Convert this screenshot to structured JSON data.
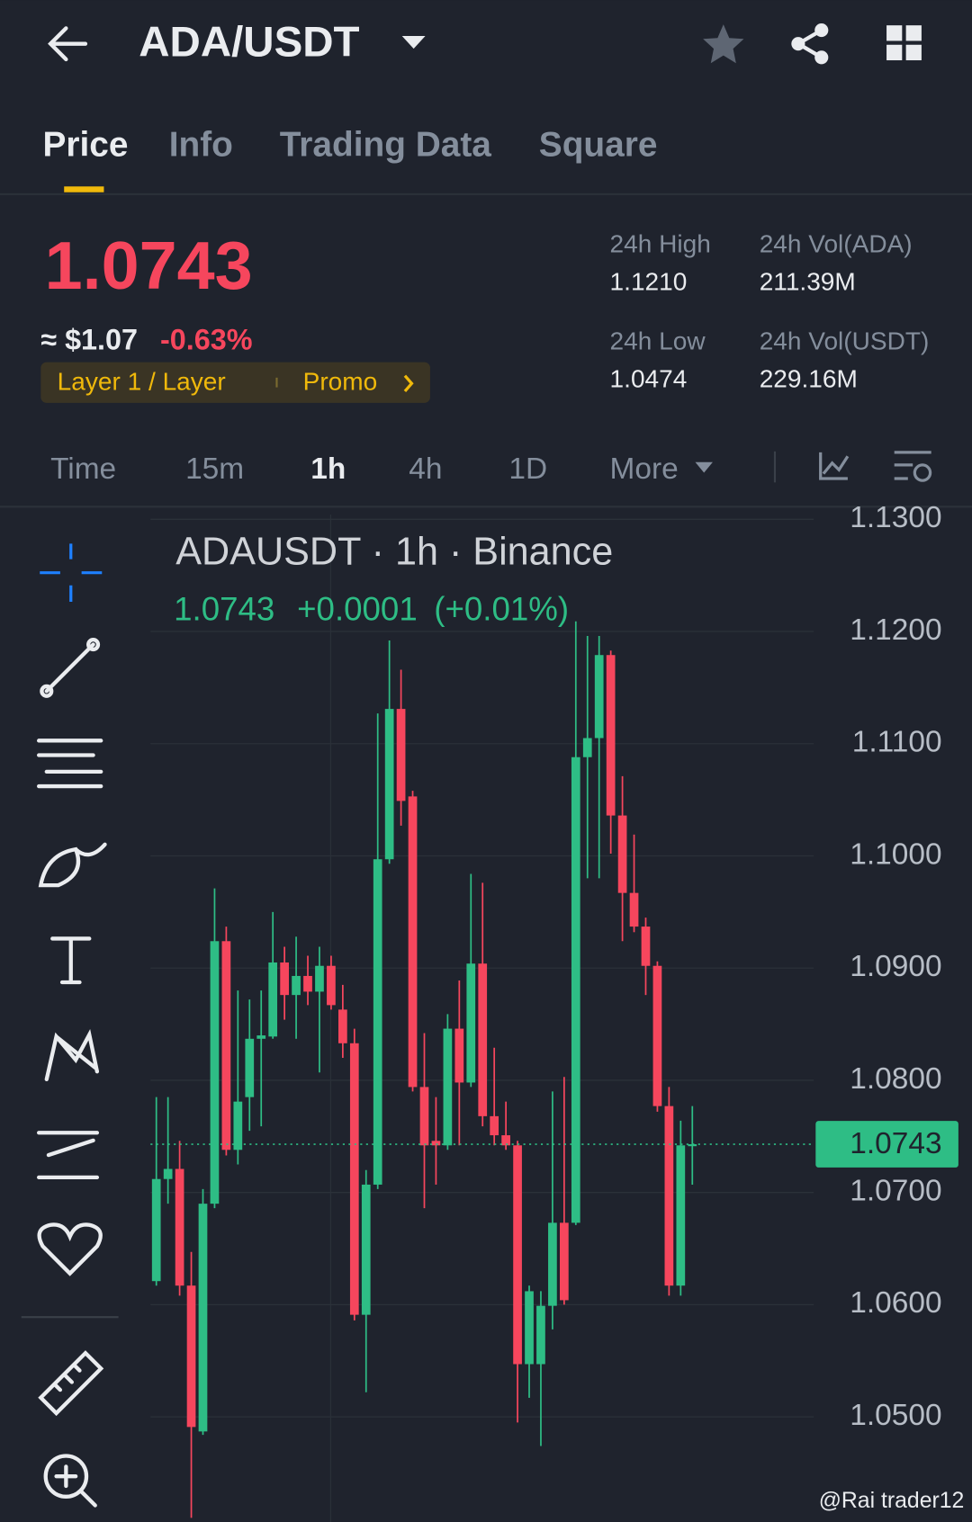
{
  "header": {
    "pair": "ADA/USDT"
  },
  "tabs": [
    "Price",
    "Info",
    "Trading Data",
    "Square"
  ],
  "price": {
    "last": "1.0743",
    "usd": "≈ $1.07",
    "change": "-0.63%",
    "tag": "Layer 1 / Layer",
    "promo": "Promo"
  },
  "stats": [
    {
      "label": "24h High",
      "value": "1.1210"
    },
    {
      "label": "24h Vol(ADA)",
      "value": "211.39M"
    },
    {
      "label": "24h Low",
      "value": "1.0474"
    },
    {
      "label": "24h Vol(USDT)",
      "value": "229.16M"
    }
  ],
  "intervals": [
    "Time",
    "15m",
    "1h",
    "4h",
    "1D",
    "More"
  ],
  "chart_data": {
    "type": "candlestick",
    "legend": {
      "title": "ADAUSDT · 1h · Binance",
      "price": "1.0743",
      "change": "+0.0001",
      "change_pct": "(+0.01%)"
    },
    "last_price_label": "1.0743",
    "up_color": "#2ebd85",
    "down_color": "#f6465d",
    "ylim": [
      1.04,
      1.131
    ],
    "yticks": [
      {
        "value": 1.05,
        "label": "1.0500"
      },
      {
        "value": 1.06,
        "label": "1.0600"
      },
      {
        "value": 1.07,
        "label": "1.0700"
      },
      {
        "value": 1.08,
        "label": "1.0800"
      },
      {
        "value": 1.09,
        "label": "1.0900"
      },
      {
        "value": 1.1,
        "label": "1.1000"
      },
      {
        "value": 1.11,
        "label": "1.1100"
      },
      {
        "value": 1.12,
        "label": "1.1200"
      },
      {
        "value": 1.13,
        "label": "1.1300"
      }
    ],
    "grid": true,
    "open": [
      1.0621,
      1.0712,
      1.0721,
      1.0617,
      1.0487,
      1.069,
      1.0924,
      1.0738,
      1.0785,
      1.0837,
      1.0839,
      1.0905,
      1.0876,
      1.0893,
      1.0879,
      1.0902,
      1.0863,
      1.0833,
      1.0591,
      1.0707,
      1.0997,
      1.1131,
      1.1053,
      1.0794,
      1.0746,
      1.0742,
      1.0846,
      1.0798,
      1.0904,
      1.0768,
      1.0751,
      1.0742,
      1.0547,
      1.0547,
      1.0599,
      1.0673,
      1.0673,
      1.1088,
      1.1105,
      1.1179,
      1.1036,
      1.0967,
      1.0937,
      1.0902,
      1.0777,
      1.0617,
      1.0742
    ],
    "high": [
      1.0785,
      1.0785,
      1.0746,
      1.0647,
      1.0703,
      1.0971,
      1.0937,
      1.088,
      1.0872,
      1.088,
      1.095,
      1.0919,
      1.0928,
      1.0911,
      1.0919,
      1.0911,
      1.0885,
      1.0846,
      1.072,
      1.1127,
      1.1192,
      1.1166,
      1.1058,
      1.0842,
      1.0785,
      1.0859,
      1.0889,
      1.0984,
      1.0976,
      1.0829,
      1.0781,
      1.0746,
      1.0617,
      1.0612,
      1.079,
      1.0803,
      1.1209,
      1.1196,
      1.1196,
      1.1183,
      1.1071,
      1.1019,
      1.0945,
      1.0906,
      1.0794,
      1.0764,
      1.0777
    ],
    "low": [
      1.0617,
      1.069,
      1.0608,
      1.041,
      1.0484,
      1.0686,
      1.0733,
      1.0725,
      1.0755,
      1.0759,
      1.0837,
      1.0854,
      1.0837,
      1.0867,
      1.0807,
      1.0863,
      1.082,
      1.0586,
      1.0522,
      1.0703,
      1.0993,
      1.1027,
      1.079,
      1.0686,
      1.0707,
      1.0738,
      1.0742,
      1.0794,
      1.0759,
      1.0742,
      1.0738,
      1.0495,
      1.0517,
      1.0474,
      1.0578,
      1.06,
      1.0671,
      1.098,
      1.098,
      1.1002,
      1.0924,
      1.0932,
      1.0876,
      1.0772,
      1.0608,
      1.0608,
      1.0707
    ],
    "close": [
      1.0712,
      1.0721,
      1.0617,
      1.0491,
      1.069,
      1.0924,
      1.0738,
      1.0781,
      1.0837,
      1.084,
      1.0905,
      1.0876,
      1.0893,
      1.0879,
      1.0902,
      1.0867,
      1.0833,
      1.0591,
      1.0707,
      1.0997,
      1.1131,
      1.1049,
      1.0794,
      1.0742,
      1.0742,
      1.0846,
      1.0798,
      1.0904,
      1.0768,
      1.0751,
      1.0742,
      1.0547,
      1.0612,
      1.0599,
      1.0673,
      1.0604,
      1.1088,
      1.1105,
      1.1179,
      1.1036,
      1.0967,
      1.0937,
      1.0902,
      1.0777,
      1.0617,
      1.0742,
      1.0743
    ]
  },
  "watermark": "@Rai trader12"
}
